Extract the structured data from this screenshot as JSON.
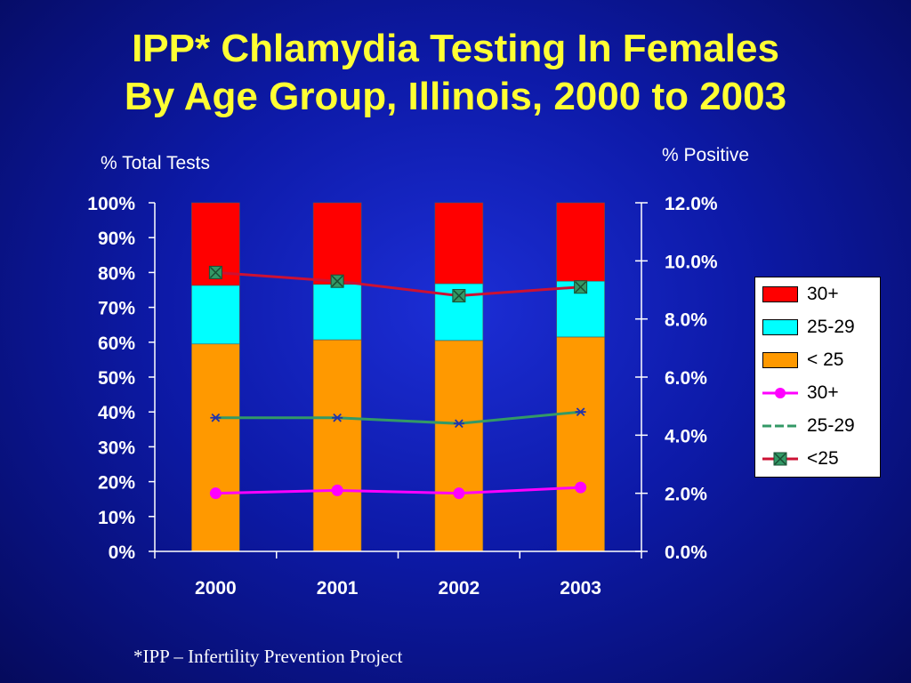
{
  "title_line1": "IPP* Chlamydia Testing In Females",
  "title_line2": "By Age Group, Illinois, 2000 to 2003",
  "footnote": "*IPP – Infertility Prevention Project",
  "chart_data": {
    "type": "bar",
    "subtype": "stacked-percent bar with line overlay on secondary axis",
    "categories": [
      "2000",
      "2001",
      "2002",
      "2003"
    ],
    "left_axis": {
      "label": "% Total Tests",
      "ylim": [
        0,
        100
      ],
      "ticks": [
        "0%",
        "10%",
        "20%",
        "30%",
        "40%",
        "50%",
        "60%",
        "70%",
        "80%",
        "90%",
        "100%"
      ]
    },
    "right_axis": {
      "label": "% Positive",
      "ylim": [
        0,
        12
      ],
      "ticks": [
        "0.0%",
        "2.0%",
        "4.0%",
        "6.0%",
        "8.0%",
        "10.0%",
        "12.0%"
      ]
    },
    "bar_series": [
      {
        "name": "< 25",
        "color": "#ff9900",
        "values": [
          59.5,
          60.7,
          60.5,
          61.5
        ]
      },
      {
        "name": "25-29",
        "color": "#00ffff",
        "values": [
          16.8,
          15.9,
          16.3,
          16.0
        ]
      },
      {
        "name": "30+",
        "color": "#ff0000",
        "values": [
          23.7,
          23.4,
          23.2,
          22.5
        ]
      }
    ],
    "line_series": [
      {
        "name": "30+",
        "color": "#ff00ff",
        "marker": "circle",
        "values": [
          2.0,
          2.1,
          2.0,
          2.2
        ]
      },
      {
        "name": "25-29",
        "color": "#339966",
        "marker": "star",
        "values": [
          4.6,
          4.6,
          4.4,
          4.8
        ]
      },
      {
        "name": "<25",
        "color": "#cc1133",
        "marker": "x-square",
        "values": [
          9.6,
          9.3,
          8.8,
          9.1
        ]
      }
    ],
    "legend_position": "right",
    "legend": [
      "30+",
      "25-29",
      "< 25",
      "30+",
      "25-29",
      "<25"
    ]
  }
}
